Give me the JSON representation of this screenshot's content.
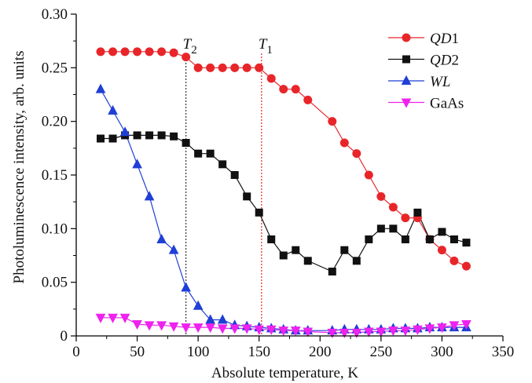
{
  "chart_data": {
    "type": "line",
    "title": "",
    "xlabel": "Absolute temperature, K",
    "ylabel": "Photoluminescence intensity, arb. units",
    "xlim": [
      0,
      350
    ],
    "ylim": [
      0,
      0.3
    ],
    "xticks": [
      "0",
      "50",
      "100",
      "150",
      "200",
      "250",
      "300",
      "350"
    ],
    "yticks": [
      "0",
      "0.05",
      "0.10",
      "0.15",
      "0.20",
      "0.25",
      "0.30"
    ],
    "grid": false,
    "legend_position": "top-right",
    "series": [
      {
        "name": "QD1",
        "name_italic": "QD",
        "name_suffix": "1",
        "color": "#e8262a",
        "marker": "circle",
        "x": [
          20,
          30,
          40,
          50,
          60,
          70,
          80,
          90,
          100,
          110,
          120,
          130,
          140,
          150,
          160,
          170,
          180,
          190,
          210,
          220,
          230,
          240,
          250,
          260,
          270,
          280,
          290,
          300,
          310,
          320
        ],
        "y": [
          0.265,
          0.265,
          0.265,
          0.265,
          0.265,
          0.265,
          0.264,
          0.26,
          0.25,
          0.25,
          0.25,
          0.25,
          0.25,
          0.25,
          0.24,
          0.23,
          0.23,
          0.22,
          0.2,
          0.18,
          0.17,
          0.15,
          0.13,
          0.12,
          0.11,
          0.11,
          0.09,
          0.08,
          0.07,
          0.065
        ]
      },
      {
        "name": "QD2",
        "name_italic": "QD",
        "name_suffix": "2",
        "color": "#111111",
        "marker": "square",
        "x": [
          20,
          30,
          40,
          50,
          60,
          70,
          80,
          90,
          100,
          110,
          120,
          130,
          140,
          150,
          160,
          170,
          180,
          190,
          210,
          220,
          230,
          240,
          250,
          260,
          270,
          280,
          290,
          300,
          310,
          320
        ],
        "y": [
          0.184,
          0.184,
          0.187,
          0.187,
          0.187,
          0.187,
          0.186,
          0.18,
          0.17,
          0.17,
          0.16,
          0.15,
          0.13,
          0.115,
          0.09,
          0.075,
          0.08,
          0.07,
          0.06,
          0.08,
          0.07,
          0.09,
          0.1,
          0.1,
          0.09,
          0.115,
          0.09,
          0.097,
          0.09,
          0.087
        ]
      },
      {
        "name": "WL",
        "name_italic": "WL",
        "name_suffix": "",
        "color": "#1f3fd6",
        "marker": "triangle-up",
        "x": [
          20,
          30,
          40,
          50,
          60,
          70,
          80,
          90,
          100,
          110,
          120,
          130,
          140,
          150,
          160,
          170,
          180,
          190,
          210,
          220,
          230,
          240,
          250,
          260,
          270,
          280,
          290,
          300,
          310,
          320
        ],
        "y": [
          0.23,
          0.21,
          0.19,
          0.16,
          0.13,
          0.09,
          0.08,
          0.045,
          0.028,
          0.015,
          0.015,
          0.01,
          0.009,
          0.008,
          0.007,
          0.006,
          0.005,
          0.005,
          0.005,
          0.006,
          0.006,
          0.006,
          0.006,
          0.007,
          0.007,
          0.007,
          0.008,
          0.008,
          0.008,
          0.008
        ]
      },
      {
        "name": "GaAs",
        "name_italic": "",
        "name_suffix": "GaAs",
        "color": "#ee22ee",
        "marker": "triangle-down",
        "x": [
          20,
          30,
          40,
          50,
          60,
          70,
          80,
          90,
          100,
          110,
          120,
          130,
          140,
          150,
          160,
          170,
          180,
          190,
          210,
          220,
          230,
          240,
          250,
          260,
          270,
          280,
          290,
          300,
          310,
          320
        ],
        "y": [
          0.017,
          0.017,
          0.017,
          0.011,
          0.01,
          0.01,
          0.009,
          0.008,
          0.008,
          0.008,
          0.007,
          0.007,
          0.007,
          0.006,
          0.006,
          0.005,
          0.005,
          0.004,
          0.003,
          0.003,
          0.003,
          0.004,
          0.004,
          0.005,
          0.005,
          0.006,
          0.007,
          0.008,
          0.01,
          0.011
        ]
      }
    ],
    "annotations": [
      {
        "italic": "T",
        "sub": "2",
        "x": 90,
        "line_color": "#333333"
      },
      {
        "italic": "T",
        "sub": "1",
        "x": 152,
        "line_color": "#e8262a"
      }
    ]
  }
}
